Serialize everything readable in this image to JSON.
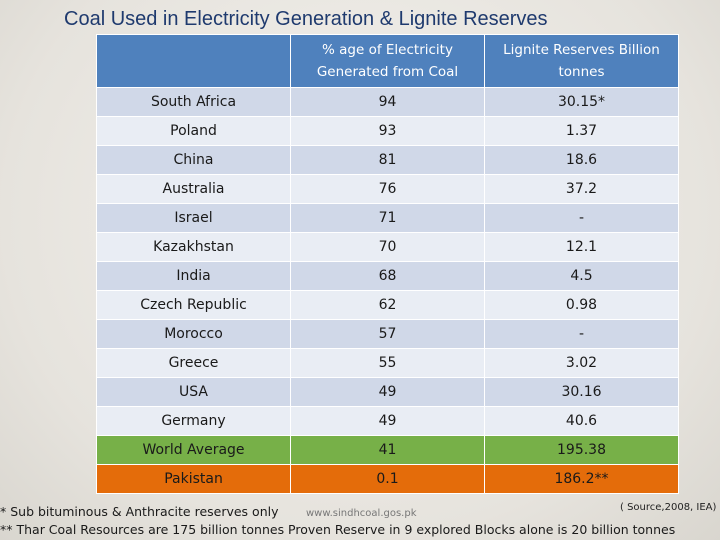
{
  "title": "Coal Used in Electricity Generation & Lignite Reserves",
  "table": {
    "headers": [
      "",
      "% age of Electricity Generated from Coal",
      "Lignite Reserves Billion tonnes"
    ],
    "rows": [
      {
        "country": "South Africa",
        "coal_pct": "94",
        "reserves": "30.15*"
      },
      {
        "country": "Poland",
        "coal_pct": "93",
        "reserves": "1.37"
      },
      {
        "country": "China",
        "coal_pct": "81",
        "reserves": "18.6"
      },
      {
        "country": "Australia",
        "coal_pct": "76",
        "reserves": "37.2"
      },
      {
        "country": "Israel",
        "coal_pct": "71",
        "reserves": "-"
      },
      {
        "country": "Kazakhstan",
        "coal_pct": "70",
        "reserves": "12.1"
      },
      {
        "country": "India",
        "coal_pct": "68",
        "reserves": "4.5"
      },
      {
        "country": "Czech Republic",
        "coal_pct": "62",
        "reserves": "0.98"
      },
      {
        "country": "Morocco",
        "coal_pct": "57",
        "reserves": "-"
      },
      {
        "country": "Greece",
        "coal_pct": "55",
        "reserves": "3.02"
      },
      {
        "country": "USA",
        "coal_pct": "49",
        "reserves": "30.16"
      },
      {
        "country": "Germany",
        "coal_pct": "49",
        "reserves": "40.6"
      },
      {
        "country": "World Average",
        "coal_pct": "41",
        "reserves": "195.38"
      },
      {
        "country": "Pakistan",
        "coal_pct": "0.1",
        "reserves": "186.2**"
      }
    ]
  },
  "footnotes": {
    "note1": "* Sub bituminous & Anthracite reserves only",
    "note2": "** Thar Coal Resources are 175 billion tonnes Proven Reserve in 9 explored Blocks alone is 20 billion tonnes",
    "website": "www.sindhcoal.gos.pk",
    "source": "( Source,2008, IEA)"
  },
  "colors": {
    "header": "#4f81bd",
    "row_odd": "#d0d8e8",
    "row_even": "#e9edf4",
    "world_average": "#77b048",
    "pakistan": "#e46c0a",
    "title": "#1f3a6e"
  }
}
